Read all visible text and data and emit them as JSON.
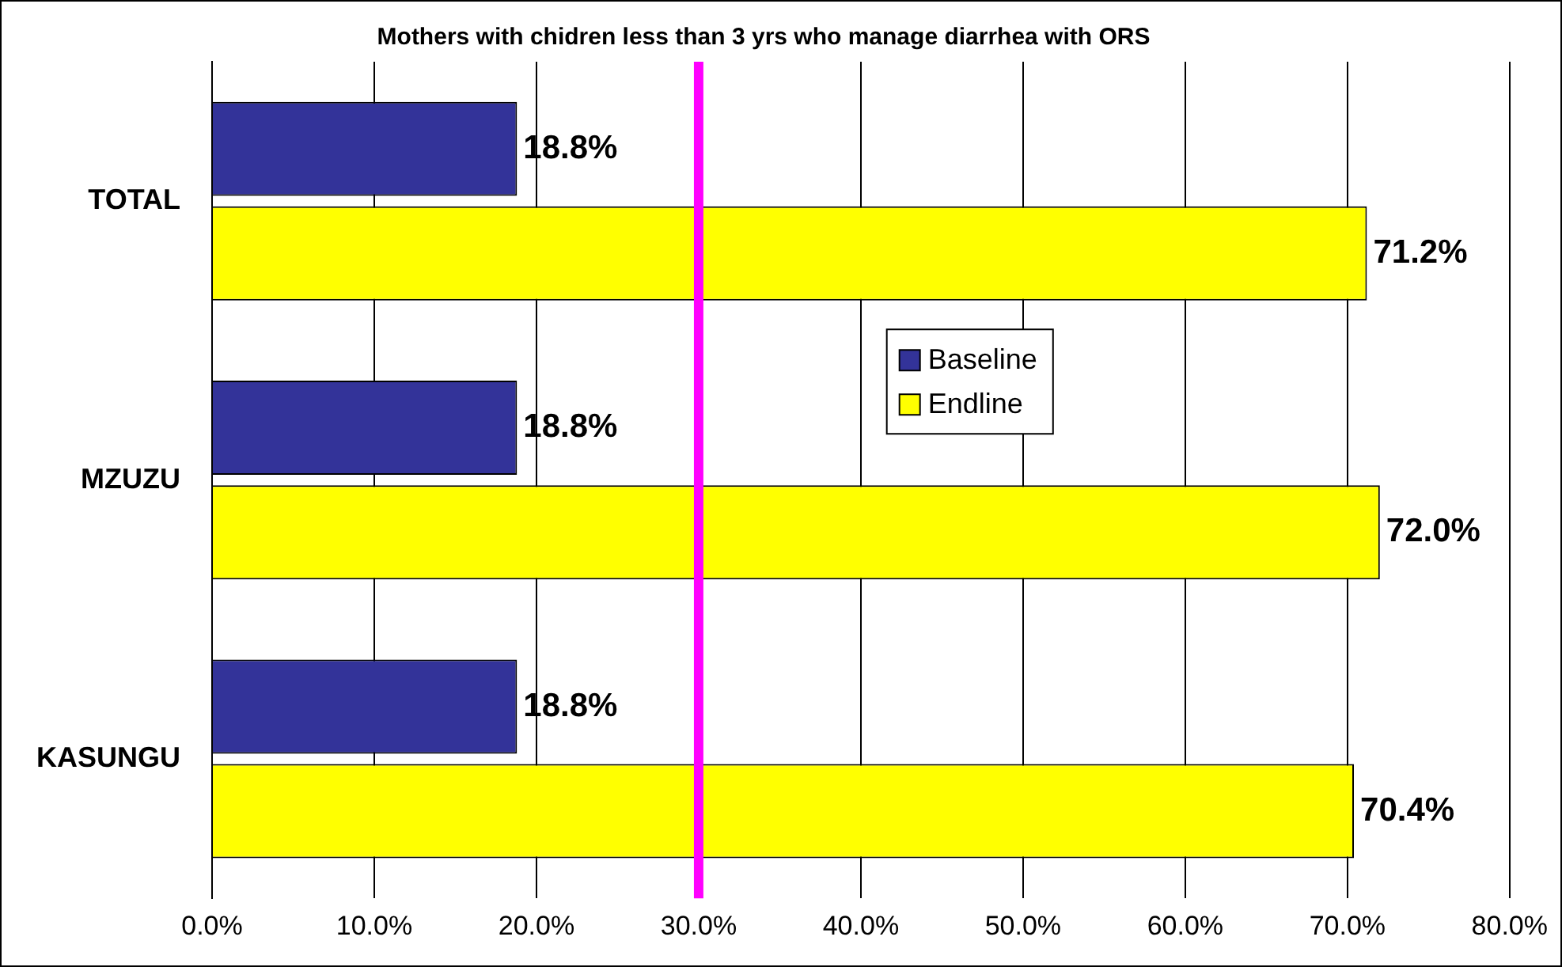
{
  "chart_data": {
    "type": "bar",
    "orientation": "horizontal",
    "title": "Mothers with chidren less than 3 yrs who manage diarrhea with ORS",
    "categories": [
      "TOTAL",
      "MZUZU",
      "KASUNGU"
    ],
    "series": [
      {
        "name": "Baseline",
        "color": "#333399",
        "values": [
          18.8,
          18.8,
          18.8
        ],
        "value_labels": [
          "18.8%",
          "18.8%",
          "18.8%"
        ]
      },
      {
        "name": "Endline",
        "color": "#ffff00",
        "values": [
          71.2,
          72.0,
          70.4
        ],
        "value_labels": [
          "71.2%",
          "72.0%",
          "70.4%"
        ]
      }
    ],
    "xlim": [
      0,
      80
    ],
    "xticks": [
      {
        "value": 0,
        "label": "0.0%"
      },
      {
        "value": 10,
        "label": "10.0%"
      },
      {
        "value": 20,
        "label": "20.0%"
      },
      {
        "value": 30,
        "label": "30.0%"
      },
      {
        "value": 40,
        "label": "40.0%"
      },
      {
        "value": 50,
        "label": "50.0%"
      },
      {
        "value": 60,
        "label": "60.0%"
      },
      {
        "value": 70,
        "label": "70.0%"
      },
      {
        "value": 80,
        "label": "80.0%"
      }
    ],
    "ref_lines": [
      {
        "axis": "x",
        "value": 30,
        "color": "#ff00ff"
      }
    ],
    "grid": "x",
    "legend": "center"
  }
}
